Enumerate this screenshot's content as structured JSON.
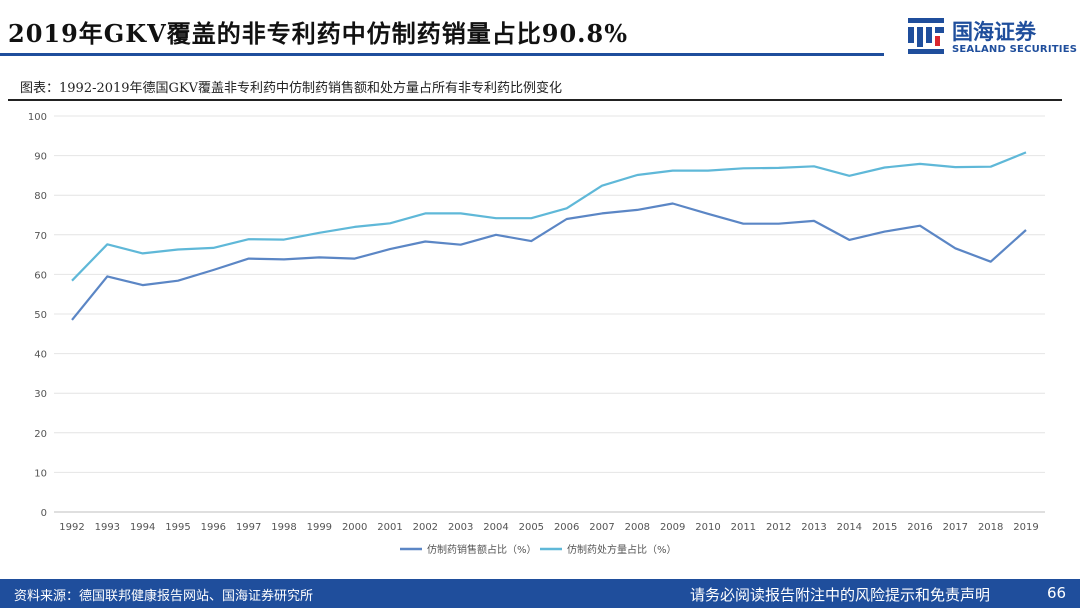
{
  "header": {
    "title": "2019年GKV覆盖的非专利药中仿制药销量占比90.8%",
    "subtitle": "图表：1992-2019年德国GKV覆盖非专利药中仿制药销售额和处方量占所有非专利药比例变化"
  },
  "logo": {
    "name_cn": "国海证券",
    "name_en": "SEALAND SECURITIES",
    "icon": "sealand-logo-icon",
    "color": "#1f4e9c"
  },
  "chart_data": {
    "type": "line",
    "x": [
      "1992",
      "1993",
      "1994",
      "1995",
      "1996",
      "1997",
      "1998",
      "1999",
      "2000",
      "2001",
      "2002",
      "2003",
      "2004",
      "2005",
      "2006",
      "2007",
      "2008",
      "2009",
      "2010",
      "2011",
      "2012",
      "2013",
      "2014",
      "2015",
      "2016",
      "2017",
      "2018",
      "2019"
    ],
    "series": [
      {
        "name": "仿制药销售额占比（%）",
        "color": "#5b86c5",
        "values": [
          48.5,
          59.5,
          57.3,
          58.4,
          61.1,
          64.0,
          63.8,
          64.3,
          64.0,
          66.4,
          68.3,
          67.5,
          70.0,
          68.4,
          74.0,
          75.4,
          76.3,
          77.9,
          75.3,
          72.8,
          72.8,
          73.5,
          68.7,
          70.8,
          72.3,
          66.6,
          63.2,
          71.2
        ]
      },
      {
        "name": "仿制药处方量占比（%）",
        "color": "#5fb8d8",
        "values": [
          58.4,
          67.6,
          65.3,
          66.3,
          66.7,
          68.9,
          68.8,
          70.5,
          72.0,
          72.9,
          75.4,
          75.4,
          74.2,
          74.2,
          76.7,
          82.4,
          85.1,
          86.2,
          86.2,
          86.8,
          86.9,
          87.3,
          84.9,
          87.0,
          87.9,
          87.1,
          87.2,
          90.8
        ]
      }
    ],
    "ylim": [
      0,
      100
    ],
    "yticks": [
      0,
      10,
      20,
      30,
      40,
      50,
      60,
      70,
      80,
      90,
      100
    ],
    "grid": true,
    "legend_position": "bottom"
  },
  "footer": {
    "source": "资料来源：德国联邦健康报告网站、国海证券研究所",
    "disclaimer": "请务必阅读报告附注中的风险提示和免责声明",
    "page": "66",
    "color": "#1f4e9c"
  }
}
